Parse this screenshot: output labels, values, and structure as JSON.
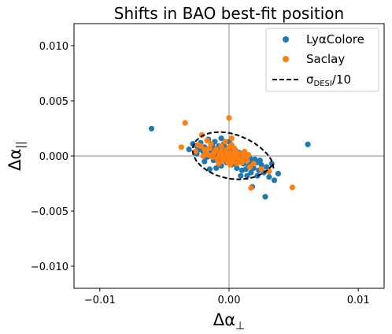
{
  "chart_data": {
    "type": "scatter",
    "title": "Shifts in BAO best-fit position",
    "xlabel": "Δα⊥",
    "ylabel": "Δα||",
    "xlim": [
      -0.012,
      0.012
    ],
    "ylim": [
      -0.012,
      0.012
    ],
    "xticks": [
      -0.01,
      0.0,
      0.01
    ],
    "xtick_labels": [
      "−0.01",
      "0.00",
      "0.01"
    ],
    "yticks": [
      0.01,
      0.005,
      0.0,
      -0.005,
      -0.01
    ],
    "ytick_labels": [
      "0.010",
      "0.005",
      "0.000",
      "−0.005",
      "−0.010"
    ],
    "grid": false,
    "reference_lines": {
      "x": 0.0,
      "y": 0.0,
      "color": "#a0a0a0"
    },
    "legend": {
      "position": "top-right",
      "entries": [
        {
          "label": "LyαColore",
          "marker": "dot",
          "color": "#1f77b4"
        },
        {
          "label": "Saclay",
          "marker": "dot",
          "color": "#ff7f0e"
        },
        {
          "label": "σDESI/10",
          "marker": "dashed-line",
          "color": "#000000"
        }
      ]
    },
    "ellipse": {
      "name": "σDESI/10",
      "center": [
        0.0,
        0.0
      ],
      "points": [
        [
          0.00344,
          -0.00113
        ],
        [
          0.0034,
          -0.00073
        ],
        [
          0.00323,
          -0.00027
        ],
        [
          0.00292,
          0.00022
        ],
        [
          0.00248,
          0.00071
        ],
        [
          0.00196,
          0.00117
        ],
        [
          0.00135,
          0.00156
        ],
        [
          0.00071,
          0.00187
        ],
        [
          4e-05,
          0.00208
        ],
        [
          -0.00061,
          0.00217
        ],
        [
          -0.00122,
          0.00214
        ],
        [
          -0.00177,
          0.00199
        ],
        [
          -0.00222,
          0.00172
        ],
        [
          -0.00256,
          0.00138
        ],
        [
          -0.00277,
          0.00095
        ],
        [
          -0.00283,
          0.00049
        ],
        [
          -0.00275,
          3e-05
        ],
        [
          -0.00252,
          -0.00045
        ],
        [
          -0.00216,
          -0.00092
        ],
        [
          -0.00169,
          -0.00133
        ],
        [
          -0.00113,
          -0.00168
        ],
        [
          -0.00049,
          -0.00193
        ],
        [
          0.00016,
          -0.00208
        ],
        [
          0.00083,
          -0.00212
        ],
        [
          0.00148,
          -0.00204
        ],
        [
          0.00206,
          -0.00188
        ],
        [
          0.00257,
          -0.0016
        ],
        [
          0.00299,
          -0.00128
        ],
        [
          0.0033,
          -0.0009
        ]
      ]
    },
    "series": [
      {
        "name": "LyαColore",
        "color": "#1f77b4",
        "points": [
          [
            -0.006,
            0.00248
          ],
          [
            0.0061,
            0.00105
          ],
          [
            -0.0031,
            0.0006
          ],
          [
            -0.0028,
            0.0011
          ],
          [
            -0.0025,
            0.0009
          ],
          [
            -0.0022,
            0.0012
          ],
          [
            -0.0019,
            0.0008
          ],
          [
            -0.0016,
            0.0015
          ],
          [
            -0.0013,
            0.001
          ],
          [
            -0.0011,
            0.0013
          ],
          [
            -0.0008,
            0.0009
          ],
          [
            -0.0006,
            0.0016
          ],
          [
            -0.0004,
            0.0011
          ],
          [
            -0.0002,
            0.0007
          ],
          [
            0.0,
            0.0013
          ],
          [
            0.0002,
            0.0009
          ],
          [
            0.0005,
            0.0005
          ],
          [
            -0.0025,
            0.0002
          ],
          [
            -0.002,
            0.0004
          ],
          [
            -0.0017,
            -0.0001
          ],
          [
            -0.0014,
            0.0003
          ],
          [
            -0.0012,
            -0.0004
          ],
          [
            -0.001,
            0.0001
          ],
          [
            -0.0008,
            -0.0006
          ],
          [
            -0.0007,
            0.0004
          ],
          [
            -0.0005,
            -0.0002
          ],
          [
            -0.0003,
            0.0002
          ],
          [
            -0.0001,
            -0.0004
          ],
          [
            0.0001,
            0.0
          ],
          [
            0.0003,
            -0.0003
          ],
          [
            0.0005,
            0.0001
          ],
          [
            0.0007,
            -0.0005
          ],
          [
            0.0009,
            -0.0001
          ],
          [
            0.0011,
            -0.0007
          ],
          [
            0.0013,
            -0.0003
          ],
          [
            0.0015,
            -0.0009
          ],
          [
            0.0017,
            -0.0005
          ],
          [
            0.0019,
            -0.0011
          ],
          [
            0.0021,
            -0.0006
          ],
          [
            0.0023,
            -0.0013
          ],
          [
            0.0025,
            -0.0008
          ],
          [
            0.0027,
            -0.0015
          ],
          [
            0.0029,
            -0.001
          ],
          [
            0.0031,
            -0.0019
          ],
          [
            0.0033,
            -0.0007
          ],
          [
            0.0035,
            -0.0022
          ],
          [
            0.0038,
            -0.0016
          ],
          [
            0.0028,
            -0.0037
          ],
          [
            0.0018,
            -0.0028
          ],
          [
            0.0014,
            -0.0018
          ],
          [
            0.001,
            -0.0013
          ],
          [
            0.0006,
            -0.0011
          ],
          [
            0.0002,
            -0.0008
          ],
          [
            -0.0002,
            -0.0006
          ],
          [
            -0.0006,
            -0.0009
          ],
          [
            -0.001,
            -0.0011
          ],
          [
            -0.0015,
            -0.0012
          ],
          [
            -0.0004,
            0.0005
          ],
          [
            0.0001,
            0.0004
          ],
          [
            0.0004,
            -0.0007
          ],
          [
            0.0008,
            0.0003
          ],
          [
            0.0012,
            0.0001
          ],
          [
            0.0016,
            -0.0002
          ],
          [
            0.002,
            -0.0003
          ],
          [
            0.0024,
            -0.0004
          ],
          [
            -0.0019,
            -0.0005
          ],
          [
            -0.0023,
            0.0006
          ],
          [
            0.0,
            -0.0001
          ],
          [
            0.0003,
            0.0006
          ],
          [
            -0.0007,
            0.0001
          ],
          [
            0.0013,
            -0.0012
          ],
          [
            0.0017,
            -0.0015
          ],
          [
            0.0022,
            -0.0018
          ],
          [
            0.0009,
            -0.0018
          ],
          [
            -0.0012,
            0.0007
          ]
        ]
      },
      {
        "name": "Saclay",
        "color": "#ff7f0e",
        "points": [
          [
            -0.0034,
            0.003
          ],
          [
            0.0,
            0.00345
          ],
          [
            0.0049,
            -0.00285
          ],
          [
            0.0017,
            -0.0029
          ],
          [
            -0.0037,
            0.0008
          ],
          [
            -0.0026,
            0.0004
          ],
          [
            -0.0022,
            0.0009
          ],
          [
            -0.0018,
            0.0003
          ],
          [
            -0.0015,
            0.0007
          ],
          [
            -0.0012,
            0.0002
          ],
          [
            -0.001,
            0.0006
          ],
          [
            -0.0008,
            -0.0001
          ],
          [
            -0.0006,
            0.0004
          ],
          [
            -0.0004,
            0.0
          ],
          [
            -0.0003,
            0.0005
          ],
          [
            -0.0002,
            -0.0002
          ],
          [
            -0.0001,
            0.0002
          ],
          [
            0.0,
            -0.0001
          ],
          [
            0.0001,
            0.0003
          ],
          [
            0.0002,
            -0.0003
          ],
          [
            0.0003,
            0.0001
          ],
          [
            0.0004,
            -0.0001
          ],
          [
            0.0005,
            0.0004
          ],
          [
            0.0006,
            0.0
          ],
          [
            0.0007,
            -0.0002
          ],
          [
            0.0008,
            0.0002
          ],
          [
            0.0009,
            -0.0004
          ],
          [
            0.0011,
            0.0
          ],
          [
            0.0013,
            -0.0002
          ],
          [
            0.0015,
            0.0001
          ],
          [
            -0.0005,
            -0.0004
          ],
          [
            -0.0007,
            0.0002
          ],
          [
            -0.0009,
            -0.0003
          ],
          [
            -0.0011,
            0.0004
          ],
          [
            -0.0013,
            -0.0001
          ],
          [
            -0.0016,
            0.0001
          ],
          [
            -0.002,
            0.0
          ],
          [
            -0.0024,
            0.001
          ],
          [
            -0.0021,
            0.0019
          ],
          [
            -0.0017,
            0.0014
          ],
          [
            -0.0014,
            0.0011
          ],
          [
            0.0,
            0.0008
          ],
          [
            0.0002,
            0.001
          ],
          [
            0.0004,
            0.0007
          ],
          [
            -0.0001,
            -0.0006
          ],
          [
            0.0001,
            -0.0008
          ],
          [
            0.0003,
            -0.0005
          ],
          [
            0.0006,
            -0.0007
          ],
          [
            0.001,
            -0.0006
          ],
          [
            0.0014,
            -0.0004
          ],
          [
            0.0019,
            -0.0007
          ],
          [
            0.0025,
            -0.0012
          ],
          [
            0.0031,
            -0.0014
          ],
          [
            -0.0003,
            0.0013
          ],
          [
            -0.0006,
            0.0009
          ],
          [
            0.0012,
            0.0004
          ],
          [
            -0.0008,
            -0.0007
          ],
          [
            0.0016,
            -0.001
          ],
          [
            -0.0019,
            0.0006
          ],
          [
            0.0002,
            0.0016
          ]
        ]
      }
    ]
  }
}
